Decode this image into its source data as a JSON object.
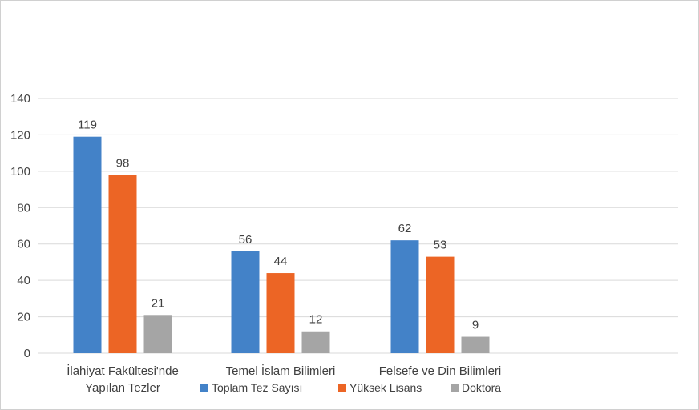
{
  "chart_data": {
    "type": "bar",
    "title": "",
    "xlabel": "",
    "ylabel": "",
    "ylim": [
      0,
      140
    ],
    "yticks": [
      0,
      20,
      40,
      60,
      80,
      100,
      120,
      140
    ],
    "grid": true,
    "legend_position": "bottom",
    "categories": [
      [
        "İlahiyat Fakültesi'nde",
        "Yapılan Tezler"
      ],
      [
        "Temel İslam Bilimleri"
      ],
      [
        "Felsefe ve Din Bilimleri"
      ]
    ],
    "series": [
      {
        "name": "Toplam Tez Sayısı",
        "color": "#4382C8",
        "values": [
          119,
          56,
          62
        ]
      },
      {
        "name": "Yüksek Lisans",
        "color": "#EC6525",
        "values": [
          98,
          44,
          53
        ]
      },
      {
        "name": "Doktora",
        "color": "#A5A5A5",
        "values": [
          21,
          12,
          9
        ]
      }
    ]
  }
}
